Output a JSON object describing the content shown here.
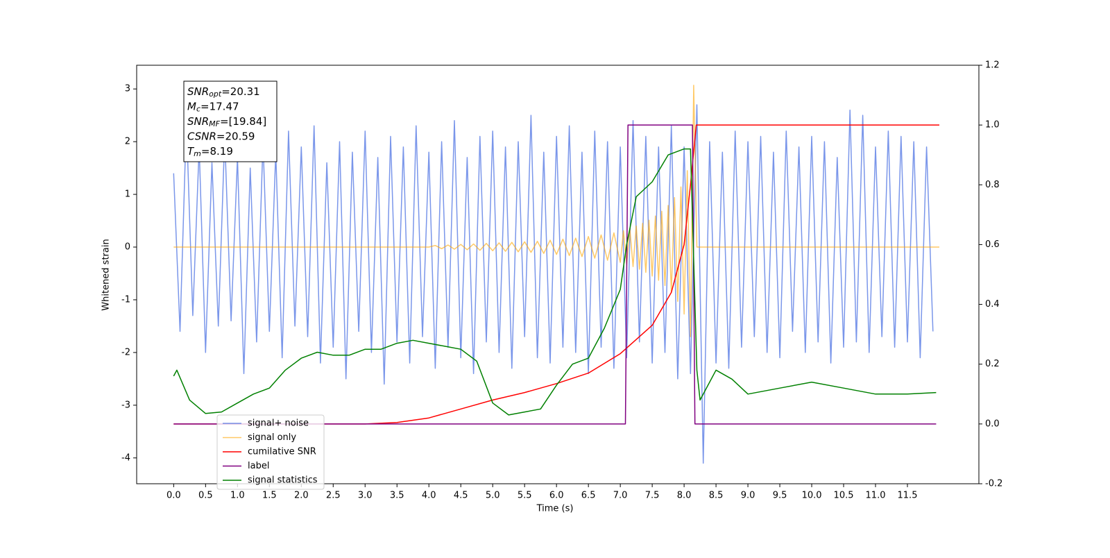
{
  "chart_data": {
    "type": "line",
    "xlabel": "Time (s)",
    "ylabel": "Whitened strain",
    "xlim": [
      -0.58,
      12.62
    ],
    "ylim": [
      -4.49,
      3.45
    ],
    "y2lim": [
      -0.2,
      1.2
    ],
    "xticks": [
      {
        "value": 0,
        "label": "0.0"
      },
      0.5,
      {
        "value": 1,
        "label": "1.0"
      },
      1.5,
      {
        "value": 2,
        "label": "2.0"
      },
      2.5,
      {
        "value": 3,
        "label": "3.0"
      },
      3.5,
      {
        "value": 4,
        "label": "4.0"
      },
      4.5,
      {
        "value": 5,
        "label": "5.0"
      },
      5.5,
      {
        "value": 6,
        "label": "6.0"
      },
      6.5,
      {
        "value": 7,
        "label": "7.0"
      },
      7.5,
      {
        "value": 8,
        "label": "8.0"
      },
      8.5,
      {
        "value": 9,
        "label": "9.0"
      },
      9.5,
      {
        "value": 10,
        "label": "10.0"
      },
      10.5,
      {
        "value": 11,
        "label": "11.0"
      },
      11.5
    ],
    "yticks": [
      -4,
      -3,
      -2,
      -1,
      0,
      1,
      2,
      3
    ],
    "y2ticks": [
      -0.2,
      {
        "value": 0,
        "label": "0.0"
      },
      0.2,
      0.4,
      0.6,
      0.8,
      {
        "value": 1,
        "label": "1.0"
      },
      1.2
    ],
    "legend": "lower left",
    "annotation": [
      {
        "symbol": "SNR",
        "sub": "opt",
        "text": "=20.31"
      },
      {
        "symbol": "M",
        "sub": "c",
        "text": "=17.47"
      },
      {
        "symbol": "SNR",
        "sub": "MF",
        "text": "=[19.84]"
      },
      {
        "symbol": "CSNR",
        "sub": null,
        "text": "=20.59"
      },
      {
        "symbol": "T",
        "sub": "m",
        "text": "=8.19"
      }
    ],
    "series": [
      {
        "name": "signal+ noise",
        "color": "#4169e1",
        "opacity": 0.7,
        "x": [
          0,
          0.1,
          0.2,
          0.3,
          0.4,
          0.5,
          0.6,
          0.7,
          0.8,
          0.9,
          1,
          1.1,
          1.2,
          1.3,
          1.4,
          1.5,
          1.6,
          1.7,
          1.8,
          1.9,
          2,
          2.1,
          2.2,
          2.3,
          2.4,
          2.5,
          2.6,
          2.7,
          2.8,
          2.9,
          3,
          3.1,
          3.2,
          3.3,
          3.4,
          3.5,
          3.6,
          3.7,
          3.8,
          3.9,
          4,
          4.1,
          4.2,
          4.3,
          4.4,
          4.5,
          4.6,
          4.7,
          4.8,
          4.9,
          5,
          5.1,
          5.2,
          5.3,
          5.4,
          5.5,
          5.6,
          5.7,
          5.8,
          5.9,
          6,
          6.1,
          6.2,
          6.3,
          6.4,
          6.5,
          6.6,
          6.7,
          6.8,
          6.9,
          7,
          7.1,
          7.2,
          7.3,
          7.4,
          7.5,
          7.6,
          7.7,
          7.8,
          7.9,
          8,
          8.1,
          8.2,
          8.3,
          8.4,
          8.5,
          8.6,
          8.7,
          8.8,
          8.9,
          9,
          9.1,
          9.2,
          9.3,
          9.4,
          9.5,
          9.6,
          9.7,
          9.8,
          9.9,
          10,
          10.1,
          10.2,
          10.3,
          10.4,
          10.5,
          10.6,
          10.7,
          10.8,
          10.9,
          11,
          11.1,
          11.2,
          11.3,
          11.4,
          11.5,
          11.6,
          11.7,
          11.8,
          11.9
        ],
        "values": [
          1.4,
          -1.6,
          2.4,
          -1.3,
          1.9,
          -2.0,
          1.6,
          -1.5,
          2.1,
          -1.4,
          1.7,
          -2.4,
          1.5,
          -1.8,
          2.0,
          -1.6,
          1.8,
          -2.1,
          2.2,
          -1.5,
          1.9,
          -1.7,
          2.3,
          -2.2,
          1.6,
          -1.9,
          2.0,
          -2.5,
          1.8,
          -1.6,
          2.2,
          -2.0,
          1.7,
          -2.6,
          2.1,
          -1.8,
          1.9,
          -2.2,
          2.3,
          -1.7,
          1.8,
          -2.3,
          2.0,
          -1.9,
          2.4,
          -2.1,
          1.7,
          -2.4,
          2.1,
          -1.8,
          2.2,
          -2.0,
          1.9,
          -2.3,
          2.0,
          -1.7,
          2.5,
          -2.1,
          1.8,
          -2.2,
          2.1,
          -1.9,
          2.3,
          -2.0,
          1.8,
          -2.4,
          2.2,
          -1.9,
          2.0,
          -2.3,
          1.9,
          -2.1,
          2.4,
          -1.8,
          2.1,
          -2.2,
          1.9,
          -2.0,
          2.3,
          -2.5,
          1.9,
          -2.4,
          2.7,
          -4.1,
          2.0,
          -2.2,
          1.8,
          -2.3,
          2.2,
          -1.9,
          2.0,
          -1.7,
          2.1,
          -2.0,
          1.8,
          -2.1,
          2.2,
          -1.6,
          1.9,
          -2.0,
          2.1,
          -1.8,
          2.0,
          -2.2,
          1.7,
          -1.9,
          2.6,
          -1.8,
          2.5,
          -2.0,
          1.9,
          -1.7,
          2.2,
          -1.9,
          2.1,
          -1.8,
          2.0,
          -2.1,
          1.9,
          -1.6
        ]
      },
      {
        "name": "signal only",
        "color": "#ffa500",
        "opacity": 0.6,
        "x": [
          0,
          4.0,
          4.1,
          4.2,
          4.3,
          4.4,
          4.5,
          4.6,
          4.7,
          4.8,
          4.9,
          5.0,
          5.1,
          5.2,
          5.3,
          5.4,
          5.5,
          5.6,
          5.7,
          5.8,
          5.9,
          6.0,
          6.1,
          6.2,
          6.3,
          6.4,
          6.5,
          6.6,
          6.7,
          6.8,
          6.9,
          7.0,
          7.05,
          7.1,
          7.15,
          7.2,
          7.25,
          7.3,
          7.35,
          7.4,
          7.45,
          7.5,
          7.55,
          7.6,
          7.65,
          7.7,
          7.75,
          7.8,
          7.85,
          7.9,
          7.95,
          8.0,
          8.05,
          8.1,
          8.15,
          8.2,
          12.0
        ],
        "values": [
          0,
          0,
          0.03,
          -0.03,
          0.04,
          -0.04,
          0.05,
          -0.05,
          0.06,
          -0.06,
          0.07,
          -0.07,
          0.08,
          -0.08,
          0.09,
          -0.09,
          0.1,
          -0.1,
          0.11,
          -0.12,
          0.13,
          -0.14,
          0.15,
          -0.16,
          0.17,
          -0.18,
          0.2,
          -0.21,
          0.23,
          -0.25,
          0.27,
          -0.29,
          0.31,
          -0.33,
          0.35,
          -0.37,
          0.4,
          -0.42,
          0.45,
          -0.48,
          0.51,
          -0.55,
          0.59,
          -0.63,
          0.68,
          -0.73,
          0.79,
          -0.86,
          0.94,
          -1.03,
          1.14,
          -1.27,
          1.45,
          -1.7,
          3.07,
          0,
          0
        ]
      },
      {
        "name": "cumilative SNR",
        "color": "#ff0000",
        "axis": "y2",
        "x": [
          0,
          3,
          3.5,
          4,
          4.5,
          5,
          5.5,
          6,
          6.5,
          7,
          7.5,
          7.8,
          8.0,
          8.1,
          8.19,
          12.0
        ],
        "values": [
          0,
          0,
          0.005,
          0.02,
          0.05,
          0.08,
          0.105,
          0.135,
          0.17,
          0.235,
          0.33,
          0.44,
          0.6,
          0.8,
          1.0,
          1.0
        ]
      },
      {
        "name": "label",
        "color": "#800080",
        "axis": "y2",
        "x": [
          0,
          7.08,
          7.12,
          8.13,
          8.17,
          11.95
        ],
        "values": [
          0,
          0,
          1,
          1,
          0,
          0
        ]
      },
      {
        "name": "signal statistics",
        "color": "#008000",
        "axis": "y2",
        "x": [
          0,
          0.05,
          0.25,
          0.5,
          0.75,
          1.0,
          1.25,
          1.5,
          1.75,
          2.0,
          2.25,
          2.5,
          2.75,
          3.0,
          3.25,
          3.5,
          3.75,
          4.0,
          4.25,
          4.5,
          4.75,
          5.0,
          5.25,
          5.5,
          5.75,
          6.0,
          6.25,
          6.5,
          6.75,
          7.0,
          7.1,
          7.25,
          7.5,
          7.75,
          8.0,
          8.1,
          8.2,
          8.25,
          8.5,
          8.75,
          9.0,
          9.5,
          10.0,
          10.5,
          11.0,
          11.5,
          11.95
        ],
        "values": [
          0.16,
          0.18,
          0.08,
          0.035,
          0.04,
          0.07,
          0.1,
          0.12,
          0.18,
          0.22,
          0.24,
          0.23,
          0.23,
          0.25,
          0.25,
          0.27,
          0.28,
          0.27,
          0.26,
          0.25,
          0.21,
          0.07,
          0.03,
          0.04,
          0.05,
          0.13,
          0.2,
          0.22,
          0.32,
          0.45,
          0.6,
          0.76,
          0.81,
          0.9,
          0.92,
          0.92,
          0.18,
          0.08,
          0.18,
          0.15,
          0.1,
          0.12,
          0.14,
          0.12,
          0.1,
          0.1,
          0.105
        ]
      }
    ]
  }
}
